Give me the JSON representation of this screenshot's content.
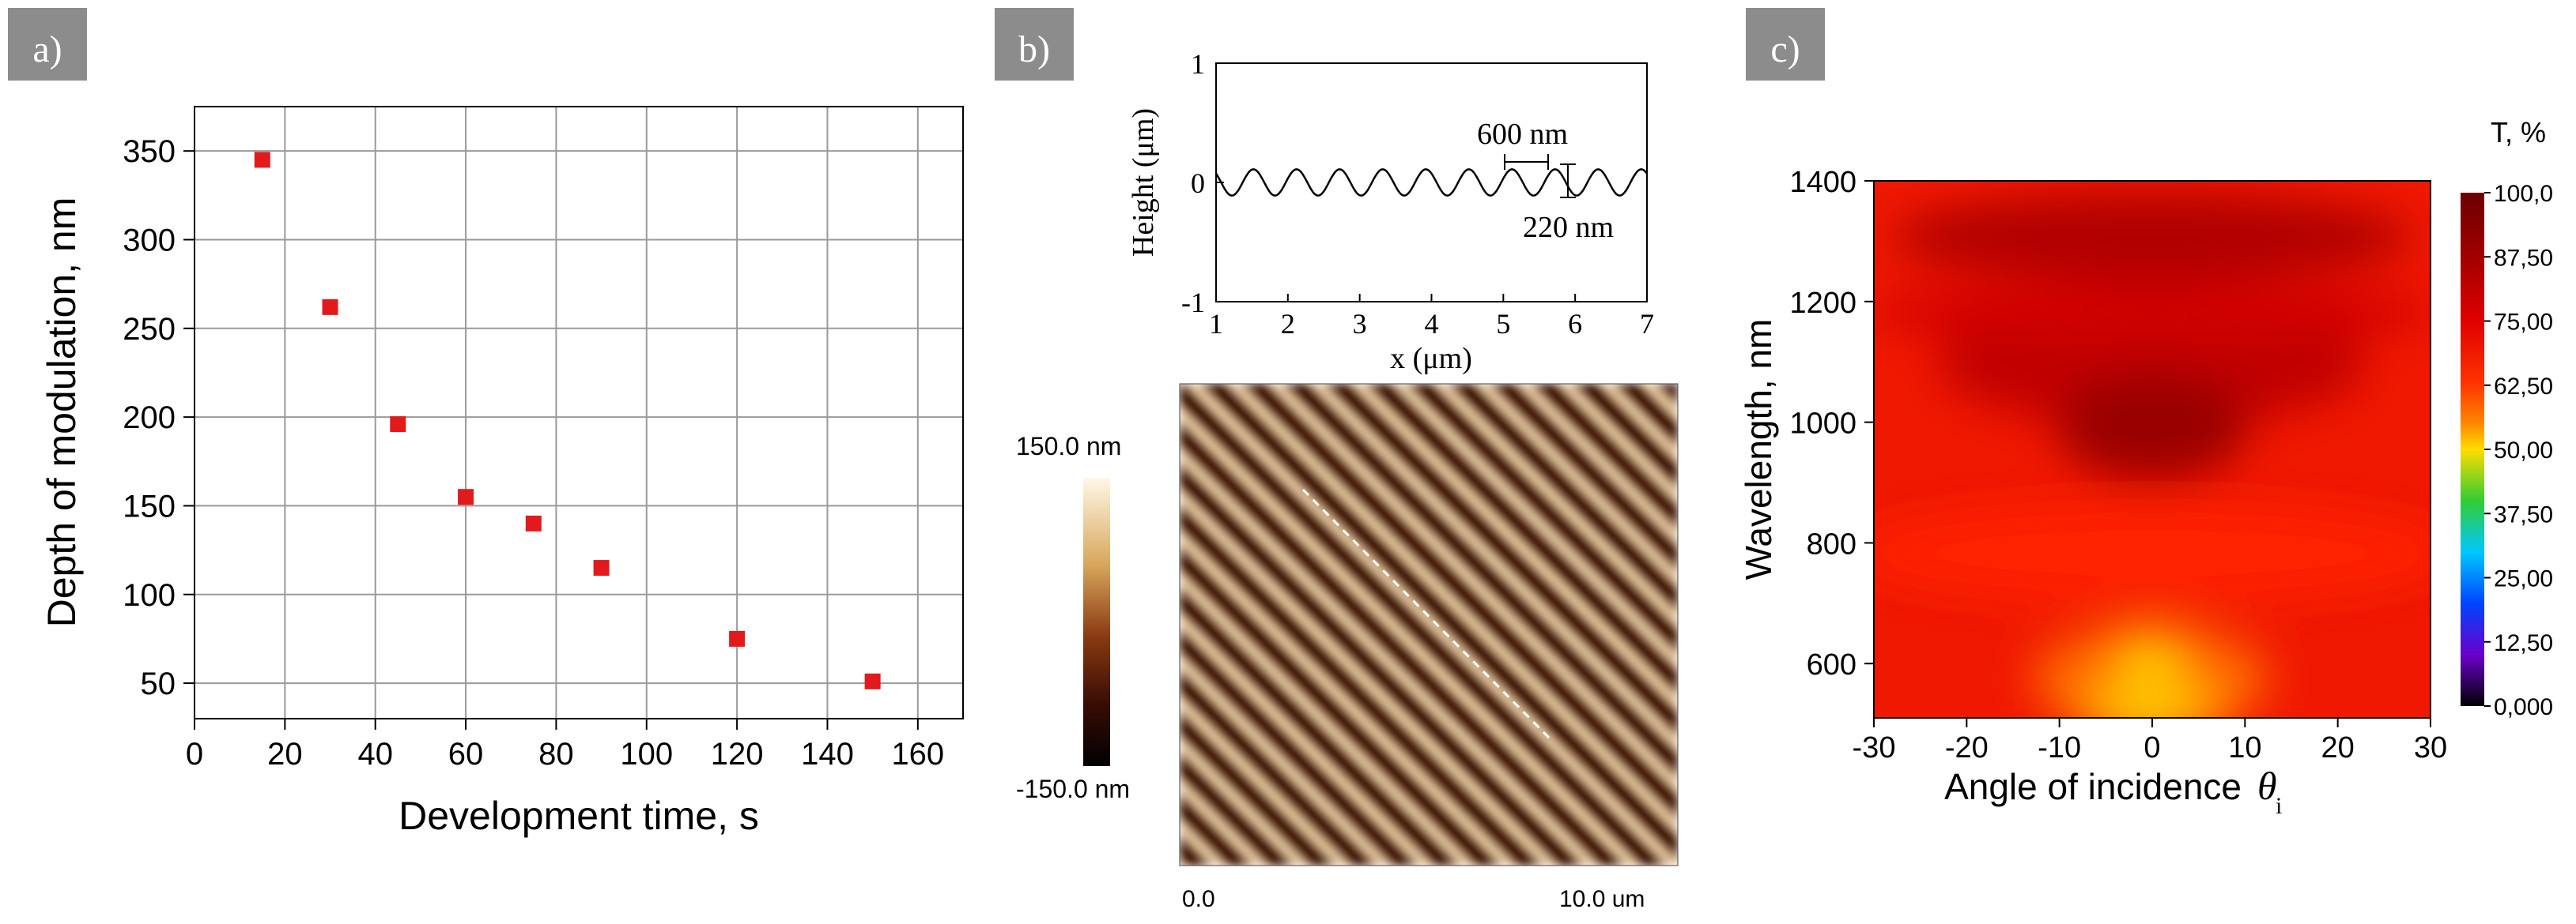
{
  "panels": {
    "a": {
      "tag": "a)"
    },
    "b": {
      "tag": "b)"
    },
    "c": {
      "tag": "c)"
    }
  },
  "chart_data": [
    {
      "id": "a",
      "type": "scatter",
      "xlabel": "Development time, s",
      "ylabel": "Depth of modulation, nm",
      "xlim": [
        0,
        170
      ],
      "ylim": [
        30,
        375
      ],
      "xticks": [
        0,
        20,
        40,
        60,
        80,
        100,
        120,
        140,
        160
      ],
      "yticks": [
        50,
        100,
        150,
        200,
        250,
        300,
        350
      ],
      "grid": true,
      "marker_color": "#e31a1c",
      "series": [
        {
          "x": [
            15,
            30,
            45,
            60,
            75,
            90,
            120,
            150
          ],
          "y": [
            345,
            262,
            196,
            155,
            140,
            115,
            75,
            51
          ]
        }
      ]
    },
    {
      "id": "b-profile",
      "type": "line",
      "xlabel": "x (μm)",
      "ylabel": "Height (μm)",
      "xlim": [
        1,
        7
      ],
      "ylim": [
        -1,
        1
      ],
      "xticks": [
        1,
        2,
        3,
        4,
        5,
        6,
        7
      ],
      "yticks": [
        -1,
        0,
        1
      ],
      "period_um": 0.6,
      "amplitude_um": 0.11,
      "annotations": [
        "600 nm",
        "220 nm"
      ]
    },
    {
      "id": "b-afm",
      "type": "heatmap",
      "colorbar_labels": [
        "150.0 nm",
        "-150.0 nm"
      ],
      "x_axis_labels": [
        "0.0",
        "10.0 um"
      ],
      "stripes_period_um": 0.6,
      "stripe_direction": "diagonal",
      "colors": [
        "#000000",
        "#3a0d05",
        "#8a3a12",
        "#d8a75c",
        "#fff8e8"
      ]
    },
    {
      "id": "c",
      "type": "heatmap",
      "xlabel": "Angle of incidence",
      "xlabel_symbol": "θ",
      "xlabel_sub": "i",
      "ylabel": "Wavelength, nm",
      "xlim": [
        -30,
        30
      ],
      "ylim": [
        510,
        1400
      ],
      "xticks": [
        -30,
        -20,
        -10,
        0,
        10,
        20,
        30
      ],
      "yticks": [
        600,
        800,
        1000,
        1200,
        1400
      ],
      "colorbar_title": "T, %",
      "colorbar_labels": [
        "100,0",
        "87,50",
        "75,00",
        "62,50",
        "50,00",
        "37,50",
        "25,00",
        "12,50",
        "0,000"
      ],
      "colors": [
        "#6b0000",
        "#a00000",
        "#d40000",
        "#ff1a00",
        "#ff6a00",
        "#ffd200",
        "#00cc33",
        "#00b4ff",
        "#0040ff",
        "#6600cc",
        "#000000"
      ]
    }
  ]
}
